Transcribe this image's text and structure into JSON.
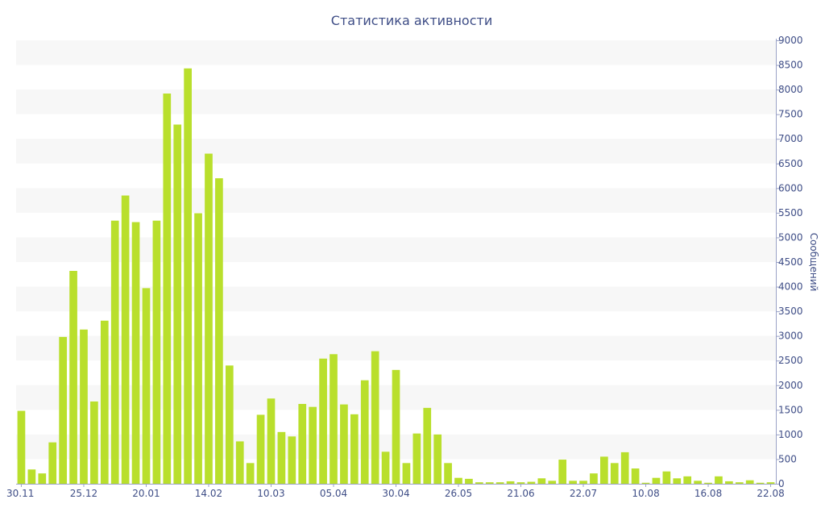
{
  "chart_data": {
    "type": "bar",
    "title": "Статистика активности",
    "xlabel": "",
    "ylabel": "Сообщений",
    "y_axis_side": "right",
    "ylim": [
      0,
      9000
    ],
    "yticks": [
      0,
      500,
      1000,
      1500,
      2000,
      2500,
      3000,
      3500,
      4000,
      4500,
      5000,
      5500,
      6000,
      6500,
      7000,
      7500,
      8000,
      8500,
      9000
    ],
    "xtick_labels": [
      {
        "label": "30.11",
        "index": 0
      },
      {
        "label": "25.12",
        "index": 6
      },
      {
        "label": "20.01",
        "index": 12
      },
      {
        "label": "14.02",
        "index": 18
      },
      {
        "label": "10.03",
        "index": 24
      },
      {
        "label": "05.04",
        "index": 30
      },
      {
        "label": "30.04",
        "index": 36
      },
      {
        "label": "26.05",
        "index": 42
      },
      {
        "label": "21.06",
        "index": 48
      },
      {
        "label": "22.07",
        "index": 54
      },
      {
        "label": "10.08",
        "index": 60
      },
      {
        "label": "16.08",
        "index": 66
      },
      {
        "label": "22.08",
        "index": 72
      }
    ],
    "grid": true,
    "bar_color": "#b9df2c",
    "band_color": "#f7f7f7",
    "values": [
      1480,
      290,
      210,
      840,
      2980,
      4320,
      3130,
      1670,
      3310,
      5340,
      5850,
      5310,
      3970,
      5340,
      7920,
      7290,
      8430,
      5490,
      6700,
      6200,
      2400,
      860,
      420,
      1400,
      1730,
      1050,
      960,
      1620,
      1560,
      2540,
      2630,
      1610,
      1410,
      2100,
      2690,
      650,
      2310,
      420,
      1020,
      1540,
      1000,
      420,
      120,
      100,
      30,
      30,
      30,
      50,
      30,
      40,
      110,
      60,
      490,
      60,
      60,
      210,
      550,
      420,
      640,
      310,
      20,
      120,
      250,
      110,
      150,
      60,
      20,
      150,
      50,
      30,
      70,
      20,
      30
    ]
  }
}
